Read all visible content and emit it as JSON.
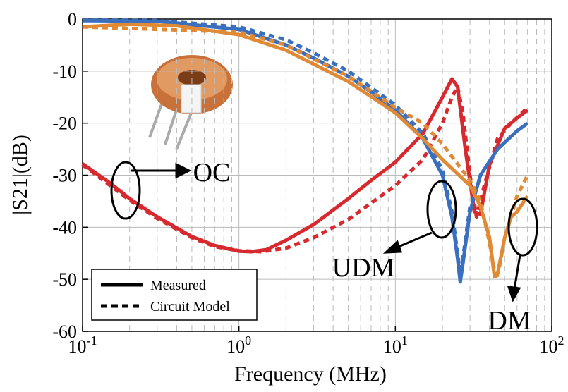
{
  "chart_data": {
    "type": "line",
    "xlabel": "Frequency (MHz)",
    "ylabel": "|S21|(dB)",
    "xscale": "log",
    "xlim": [
      0.1,
      100
    ],
    "ylim": [
      -60,
      0
    ],
    "xticks": [
      {
        "value": 0.1,
        "label": "10",
        "sup": "-1"
      },
      {
        "value": 1,
        "label": "10",
        "sup": "0"
      },
      {
        "value": 10,
        "label": "10",
        "sup": "1"
      },
      {
        "value": 100,
        "label": "10",
        "sup": "2"
      }
    ],
    "yticks": [
      -60,
      -50,
      -40,
      -30,
      -20,
      -10,
      0
    ],
    "grid": true,
    "legend": [
      {
        "name": "Measured",
        "dash": false
      },
      {
        "name": "Circuit Model",
        "dash": true
      }
    ],
    "series": [
      {
        "color": "#d62a2f",
        "dash": false,
        "x": [
          0.1,
          0.15,
          0.2,
          0.3,
          0.5,
          0.7,
          1.0,
          1.2,
          1.5,
          2,
          3,
          5,
          7,
          10,
          15,
          20,
          23,
          25,
          28,
          32,
          35,
          40,
          50,
          60,
          70
        ],
        "values": [
          -27.8,
          -31.5,
          -34.5,
          -38,
          -41.8,
          -43.5,
          -44.6,
          -44.7,
          -44.3,
          -42.5,
          -39.5,
          -34.5,
          -31,
          -27.5,
          -22,
          -15,
          -11.5,
          -13,
          -25,
          -37,
          -37.5,
          -28,
          -21,
          -19,
          -17.5
        ]
      },
      {
        "color": "#d62a2f",
        "dash": true,
        "x": [
          0.1,
          0.2,
          0.3,
          0.5,
          0.7,
          1.0,
          1.4,
          2,
          3,
          5,
          10,
          15,
          20,
          23,
          25,
          27,
          30,
          33,
          37,
          45,
          55,
          70
        ],
        "values": [
          -28,
          -34.8,
          -38.3,
          -42,
          -43.7,
          -44.5,
          -44.7,
          -44,
          -42,
          -38.5,
          -32,
          -27,
          -20,
          -15,
          -13,
          -18,
          -30,
          -38,
          -32,
          -23,
          -20,
          -17
        ]
      },
      {
        "color": "#3a6fc0",
        "dash": false,
        "x": [
          0.1,
          0.3,
          1,
          2,
          3,
          5,
          7,
          10,
          15,
          20,
          23,
          25,
          26,
          27,
          30,
          35,
          45,
          60,
          70
        ],
        "values": [
          -0.3,
          -0.4,
          -2,
          -5,
          -7.5,
          -11,
          -14,
          -17.5,
          -23,
          -30,
          -38,
          -46,
          -50.5,
          -47,
          -37,
          -30,
          -25,
          -21.5,
          -20
        ]
      },
      {
        "color": "#3a6fc0",
        "dash": true,
        "x": [
          0.1,
          0.3,
          1,
          2,
          3,
          5,
          10,
          15,
          20,
          23,
          25,
          26,
          27,
          30
        ],
        "values": [
          -0.2,
          -0.3,
          -1.5,
          -4,
          -6.5,
          -10,
          -16.5,
          -22,
          -29,
          -37,
          -45,
          -49,
          -46,
          -36
        ]
      },
      {
        "color": "#e08a35",
        "dash": false,
        "x": [
          0.1,
          0.2,
          0.4,
          1,
          2,
          5,
          10,
          15,
          20,
          30,
          35,
          40,
          43,
          45,
          50,
          55,
          60,
          70
        ],
        "values": [
          -1.5,
          -1.0,
          -1.3,
          -3,
          -6,
          -12,
          -18,
          -23,
          -27,
          -32,
          -36,
          -42,
          -49.5,
          -49,
          -42,
          -38,
          -37,
          -34
        ]
      },
      {
        "color": "#e08a35",
        "dash": true,
        "x": [
          0.1,
          1,
          2,
          5,
          10,
          15,
          20,
          30,
          35,
          40,
          44,
          46,
          50,
          55,
          60,
          70
        ],
        "values": [
          -1.5,
          -2.5,
          -5,
          -11,
          -17,
          -20,
          -24,
          -31,
          -35,
          -43,
          -50,
          -48,
          -42,
          -38,
          -34,
          -30
        ]
      }
    ],
    "annotations": [
      "OC",
      "UDM",
      "DM"
    ]
  }
}
